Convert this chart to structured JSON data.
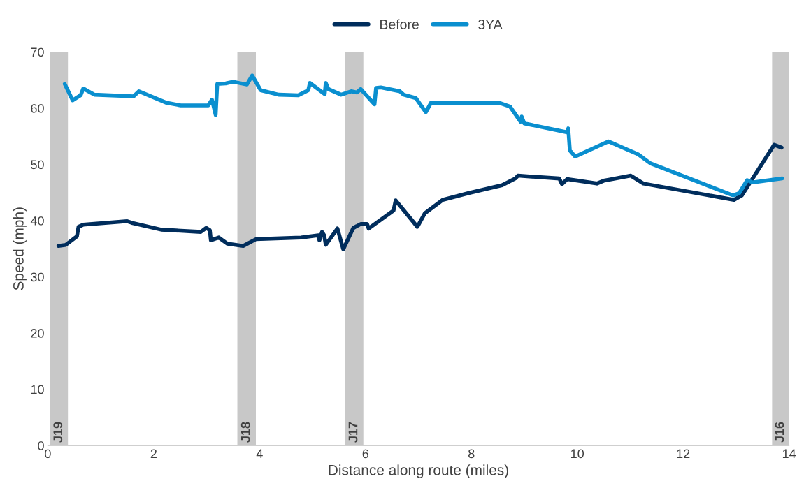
{
  "chart_data": {
    "type": "line",
    "xlabel": "Distance along route (miles)",
    "ylabel": "Speed (mph)",
    "xlim": [
      0,
      14
    ],
    "xticks": [
      0,
      2,
      4,
      6,
      8,
      10,
      12,
      14
    ],
    "ylim": [
      0,
      70
    ],
    "yticks": [
      0,
      10,
      20,
      30,
      40,
      50,
      60,
      70
    ],
    "grid": false,
    "legend": "top",
    "line_style": "solid",
    "marker": "none",
    "series": [
      {
        "name": "Before",
        "color": "#002d5c",
        "x": [
          0.2,
          0.34,
          0.55,
          0.58,
          0.67,
          1.5,
          1.59,
          2.14,
          2.89,
          2.99,
          3.06,
          3.08,
          3.23,
          3.39,
          3.69,
          3.93,
          4.78,
          5.11,
          5.13,
          5.18,
          5.22,
          5.25,
          5.47,
          5.58,
          5.77,
          5.91,
          6.03,
          6.06,
          6.53,
          6.57,
          6.98,
          7.12,
          7.46,
          7.95,
          8.58,
          8.83,
          8.88,
          9.66,
          9.71,
          9.81,
          10.37,
          10.5,
          11.01,
          11.25,
          12.96,
          13.11,
          13.72,
          13.86
        ],
        "values": [
          35.5,
          35.7,
          37.2,
          38.9,
          39.3,
          39.9,
          39.6,
          38.4,
          38.0,
          38.7,
          38.3,
          36.5,
          37.0,
          35.9,
          35.5,
          36.7,
          37.0,
          37.4,
          36.5,
          38.0,
          37.4,
          35.7,
          38.6,
          34.9,
          38.7,
          39.4,
          39.4,
          38.6,
          41.8,
          43.6,
          38.9,
          41.3,
          43.7,
          44.9,
          46.3,
          47.5,
          48.0,
          47.5,
          46.5,
          47.4,
          46.6,
          47.1,
          48.0,
          46.6,
          43.7,
          44.5,
          53.5,
          53.0
        ]
      },
      {
        "name": "3YA",
        "color": "#0a8fcf",
        "x": [
          0.32,
          0.47,
          0.62,
          0.67,
          0.88,
          1.62,
          1.72,
          2.23,
          2.51,
          3.03,
          3.1,
          3.13,
          3.17,
          3.2,
          3.36,
          3.5,
          3.76,
          3.86,
          4.02,
          4.36,
          4.73,
          4.92,
          4.95,
          5.23,
          5.25,
          5.3,
          5.54,
          5.73,
          5.84,
          5.91,
          6.17,
          6.2,
          6.29,
          6.65,
          6.72,
          6.95,
          7.14,
          7.24,
          7.7,
          8.54,
          8.73,
          8.93,
          8.95,
          9.0,
          9.81,
          9.83,
          9.86,
          9.96,
          10.59,
          11.15,
          11.38,
          12.94,
          13.06,
          13.21,
          13.31,
          13.87
        ],
        "values": [
          64.3,
          61.4,
          62.3,
          63.5,
          62.4,
          62.1,
          63.0,
          61.0,
          60.5,
          60.5,
          61.5,
          60.4,
          58.8,
          64.3,
          64.4,
          64.7,
          64.2,
          65.8,
          63.2,
          62.4,
          62.3,
          63.2,
          64.5,
          62.5,
          64.5,
          63.4,
          62.4,
          63.0,
          62.8,
          63.4,
          60.7,
          63.6,
          63.7,
          63.0,
          62.4,
          61.8,
          59.3,
          61.0,
          60.9,
          60.9,
          60.3,
          57.6,
          58.5,
          57.3,
          55.7,
          56.4,
          52.5,
          51.4,
          54.1,
          51.8,
          50.2,
          44.5,
          44.9,
          47.2,
          46.8,
          47.5
        ]
      }
    ],
    "bands": [
      {
        "axis": "x",
        "from": 0.04,
        "to": 0.38,
        "label": "J19",
        "color": "#c8c8c8"
      },
      {
        "axis": "x",
        "from": 3.58,
        "to": 3.93,
        "label": "J18",
        "color": "#c8c8c8"
      },
      {
        "axis": "x",
        "from": 5.61,
        "to": 5.96,
        "label": "J17",
        "color": "#c8c8c8"
      },
      {
        "axis": "x",
        "from": 13.68,
        "to": 14.0,
        "label": "J16",
        "color": "#c8c8c8"
      }
    ]
  }
}
